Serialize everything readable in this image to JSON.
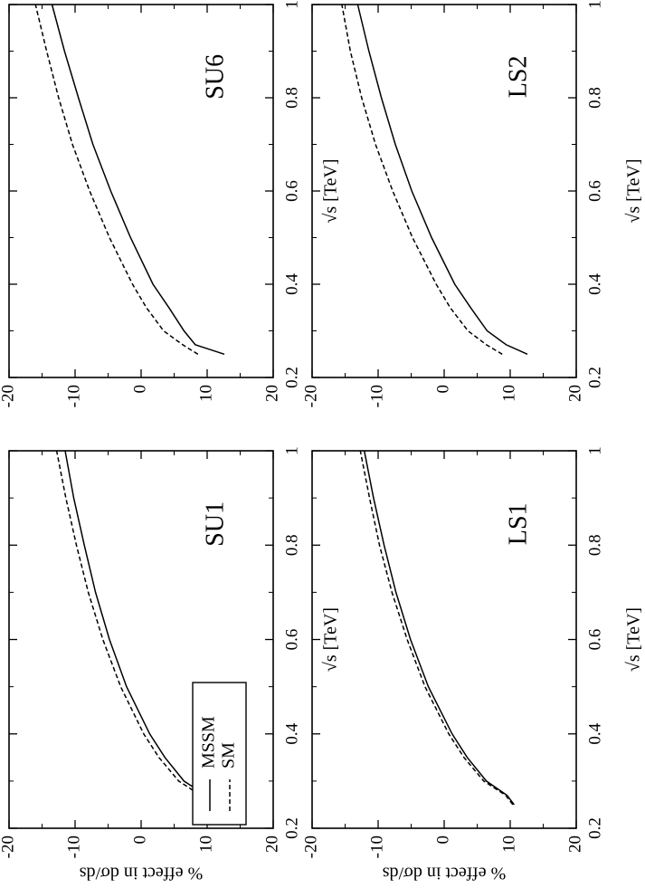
{
  "chart_data": [
    {
      "type": "line",
      "panel": "SU1",
      "xlabel": "√s  [TeV]",
      "ylabel": "% effect in dσ/ds",
      "xlim": [
        0.2,
        1.0
      ],
      "ylim": [
        -20,
        20
      ],
      "x_ticks": [
        "0.2",
        "0.4",
        "0.6",
        "0.8",
        "1"
      ],
      "y_ticks": [
        "-20",
        "-10",
        "0",
        "10",
        "20"
      ],
      "legend": {
        "position": "bottom-left",
        "entries": [
          "MSSM",
          "SM"
        ]
      },
      "series": [
        {
          "name": "MSSM",
          "style": "solid",
          "x": [
            0.25,
            0.27,
            0.3,
            0.35,
            0.4,
            0.5,
            0.6,
            0.7,
            0.8,
            0.9,
            1.0
          ],
          "y": [
            10.6,
            9.8,
            6.5,
            3.6,
            1.3,
            -2.2,
            -4.8,
            -6.9,
            -8.6,
            -10.2,
            -11.5
          ]
        },
        {
          "name": "SM",
          "style": "dashed",
          "x": [
            0.25,
            0.27,
            0.3,
            0.35,
            0.4,
            0.5,
            0.6,
            0.7,
            0.8,
            0.9,
            1.0
          ],
          "y": [
            10.3,
            9.0,
            5.7,
            2.7,
            0.4,
            -3.1,
            -5.8,
            -8.0,
            -9.8,
            -11.4,
            -12.8
          ]
        }
      ]
    },
    {
      "type": "line",
      "panel": "SU6",
      "xlabel": "√s  [TeV]",
      "ylabel": "% effect in dσ/ds",
      "xlim": [
        0.2,
        1.0
      ],
      "ylim": [
        -20,
        20
      ],
      "x_ticks": [
        "0.2",
        "0.4",
        "0.6",
        "0.8",
        "1"
      ],
      "y_ticks": [
        "-20",
        "-10",
        "0",
        "10",
        "20"
      ],
      "series": [
        {
          "name": "MSSM",
          "style": "solid",
          "x": [
            0.25,
            0.27,
            0.3,
            0.35,
            0.4,
            0.5,
            0.6,
            0.7,
            0.8,
            0.9,
            1.0
          ],
          "y": [
            12.6,
            8.2,
            6.5,
            4.2,
            1.8,
            -1.6,
            -4.6,
            -7.3,
            -9.5,
            -11.6,
            -13.5
          ]
        },
        {
          "name": "SM",
          "style": "dashed",
          "x": [
            0.25,
            0.27,
            0.3,
            0.35,
            0.4,
            0.5,
            0.6,
            0.7,
            0.8,
            0.9,
            1.0
          ],
          "y": [
            8.6,
            6.3,
            3.4,
            0.8,
            -1.3,
            -4.8,
            -7.8,
            -10.4,
            -12.5,
            -14.3,
            -16.0
          ]
        }
      ]
    },
    {
      "type": "line",
      "panel": "LS1",
      "xlabel": "√s  [TeV]",
      "ylabel": "% effect in dσ/ds",
      "xlim": [
        0.2,
        1.0
      ],
      "ylim": [
        -20,
        20
      ],
      "x_ticks": [
        "0.2",
        "0.4",
        "0.6",
        "0.8",
        "1"
      ],
      "y_ticks": [
        "-20",
        "-10",
        "0",
        "10",
        "20"
      ],
      "series": [
        {
          "name": "MSSM",
          "style": "solid",
          "x": [
            0.25,
            0.27,
            0.3,
            0.35,
            0.4,
            0.5,
            0.6,
            0.7,
            0.8,
            0.9,
            1.0
          ],
          "y": [
            10.6,
            9.5,
            6.4,
            3.5,
            1.2,
            -2.4,
            -5.1,
            -7.3,
            -9.1,
            -10.7,
            -12.1
          ]
        },
        {
          "name": "SM",
          "style": "dashed",
          "x": [
            0.25,
            0.27,
            0.3,
            0.35,
            0.4,
            0.5,
            0.6,
            0.7,
            0.8,
            0.9,
            1.0
          ],
          "y": [
            10.4,
            9.3,
            6.0,
            3.0,
            0.7,
            -2.9,
            -5.6,
            -7.9,
            -9.8,
            -11.3,
            -12.7
          ]
        }
      ]
    },
    {
      "type": "line",
      "panel": "LS2",
      "xlabel": "√s  [TeV]",
      "ylabel": "% effect in dσ/ds",
      "xlim": [
        0.2,
        1.0
      ],
      "ylim": [
        -20,
        20
      ],
      "x_ticks": [
        "0.2",
        "0.4",
        "0.6",
        "0.8",
        "1"
      ],
      "y_ticks": [
        "-20",
        "-10",
        "0",
        "10",
        "20"
      ],
      "series": [
        {
          "name": "MSSM",
          "style": "solid",
          "x": [
            0.25,
            0.27,
            0.3,
            0.35,
            0.4,
            0.5,
            0.6,
            0.7,
            0.8,
            0.9,
            1.0
          ],
          "y": [
            12.6,
            9.4,
            6.5,
            4.0,
            1.6,
            -1.9,
            -4.9,
            -7.4,
            -9.5,
            -11.4,
            -13.1
          ]
        },
        {
          "name": "SM",
          "style": "dashed",
          "x": [
            0.25,
            0.27,
            0.3,
            0.35,
            0.4,
            0.5,
            0.6,
            0.7,
            0.8,
            0.9,
            1.0
          ],
          "y": [
            8.8,
            6.4,
            3.6,
            0.9,
            -1.2,
            -4.8,
            -7.8,
            -10.4,
            -12.5,
            -14.2,
            -15.5
          ]
        }
      ]
    }
  ]
}
